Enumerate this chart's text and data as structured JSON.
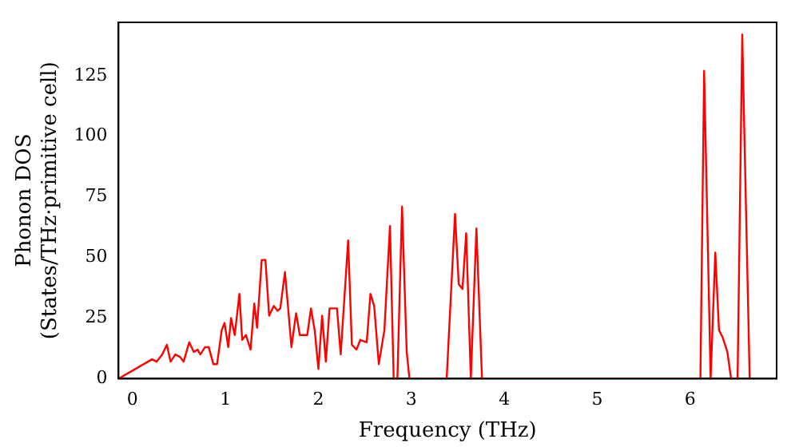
{
  "chart_data": {
    "type": "line",
    "xlabel": "Frequency (THz)",
    "ylabel": "Phonon DOS\n(States/THz·primitive cell)",
    "x": [
      -0.15,
      0.21,
      0.26,
      0.32,
      0.37,
      0.41,
      0.46,
      0.51,
      0.55,
      0.61,
      0.66,
      0.7,
      0.73,
      0.78,
      0.82,
      0.87,
      0.91,
      0.96,
      0.99,
      1.03,
      1.06,
      1.1,
      1.15,
      1.18,
      1.22,
      1.27,
      1.31,
      1.34,
      1.39,
      1.43,
      1.47,
      1.52,
      1.56,
      1.59,
      1.64,
      1.67,
      1.71,
      1.76,
      1.8,
      1.88,
      1.92,
      1.96,
      2.0,
      2.04,
      2.08,
      2.12,
      2.17,
      2.2,
      2.24,
      2.32,
      2.36,
      2.41,
      2.45,
      2.52,
      2.56,
      2.6,
      2.65,
      2.71,
      2.77,
      2.81,
      2.85,
      2.9,
      2.95,
      2.98,
      3.38,
      3.47,
      3.51,
      3.55,
      3.59,
      3.64,
      3.7,
      3.76,
      6.11,
      6.15,
      6.22,
      6.27,
      6.31,
      6.35,
      6.4,
      6.44,
      6.51,
      6.56,
      6.64
    ],
    "series": [
      {
        "color": "#ff0000",
        "values": [
          0,
          8,
          7,
          10,
          14,
          7,
          10,
          9,
          7,
          15,
          11,
          12,
          10,
          13,
          13,
          6,
          6,
          20,
          23,
          13,
          25,
          18,
          35,
          16,
          18,
          12,
          31,
          21,
          49,
          49,
          26,
          30,
          28,
          29,
          44,
          31,
          13,
          27,
          18,
          18,
          29,
          20,
          4,
          26,
          7,
          29,
          29,
          29,
          10,
          57,
          14,
          12,
          16,
          15,
          35,
          30,
          6,
          20,
          63,
          0,
          0,
          71,
          11,
          0,
          0,
          68,
          39,
          37,
          60,
          0,
          62,
          0,
          0,
          127,
          0,
          52,
          20,
          17,
          11,
          0,
          0,
          142,
          0
        ]
      }
    ],
    "xlim": [
      -0.15,
      6.93
    ],
    "ylim": [
      0,
      147
    ],
    "xticks": [
      0,
      1,
      2,
      3,
      4,
      5,
      6
    ],
    "yticks": [
      0,
      25,
      50,
      75,
      100,
      125
    ],
    "grid": false,
    "legend": false,
    "marker": "none",
    "line_style": "solid"
  }
}
